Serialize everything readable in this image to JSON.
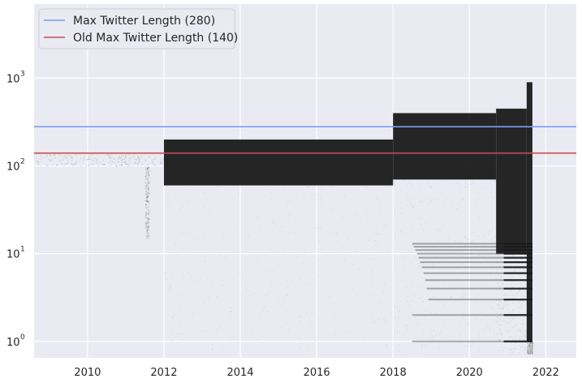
{
  "chart_data": {
    "type": "scatter",
    "title": "",
    "xlabel": "",
    "ylabel": "",
    "y_scale": "log",
    "xlim": [
      2008.6,
      2022.8
    ],
    "ylim": [
      0.65,
      7000
    ],
    "grid": true,
    "legend_position": "top-left",
    "x_ticks": [
      {
        "value": 2010,
        "label": "2010"
      },
      {
        "value": 2012,
        "label": "2012"
      },
      {
        "value": 2014,
        "label": "2014"
      },
      {
        "value": 2016,
        "label": "2016"
      },
      {
        "value": 2018,
        "label": "2018"
      },
      {
        "value": 2020,
        "label": "2020"
      },
      {
        "value": 2022,
        "label": "2022"
      }
    ],
    "y_ticks": [
      {
        "value": 1,
        "base": "10",
        "exp": "0"
      },
      {
        "value": 10,
        "base": "10",
        "exp": "1"
      },
      {
        "value": 100,
        "base": "10",
        "exp": "2"
      },
      {
        "value": 1000,
        "base": "10",
        "exp": "3"
      }
    ],
    "reference_lines": [
      {
        "name": "Max Twitter Length (280)",
        "y": 280,
        "color": "#7b9ff0"
      },
      {
        "name": "Old Max Twitter Length (140)",
        "y": 140,
        "color": "#c44e52"
      }
    ],
    "scatter_color": "#1a1a1a",
    "background_color": "#eaeaf2",
    "grid_color": "#ffffff",
    "density_segments": [
      {
        "x": [
          2008.6,
          2012.0
        ],
        "y_low": 100,
        "y_high": 140,
        "density": "sparse"
      },
      {
        "x": [
          2011.5,
          2011.6
        ],
        "y_low": 15,
        "y_high": 100,
        "density": "sparse"
      },
      {
        "x": [
          2012.0,
          2018.0
        ],
        "y_low": 60,
        "y_high": 200,
        "density": "dense"
      },
      {
        "x": [
          2018.0,
          2020.7
        ],
        "y_low": 70,
        "y_high": 400,
        "density": "dense"
      },
      {
        "x": [
          2020.7,
          2021.5
        ],
        "y_low": 10,
        "y_high": 450,
        "density": "dense"
      },
      {
        "x": [
          2021.5,
          2021.65
        ],
        "y_low": 1,
        "y_high": 900,
        "density": "dense"
      },
      {
        "x": [
          2018.5,
          2021.65
        ],
        "y_low": 1,
        "y_high": 13,
        "density": "integer-bands"
      }
    ]
  }
}
